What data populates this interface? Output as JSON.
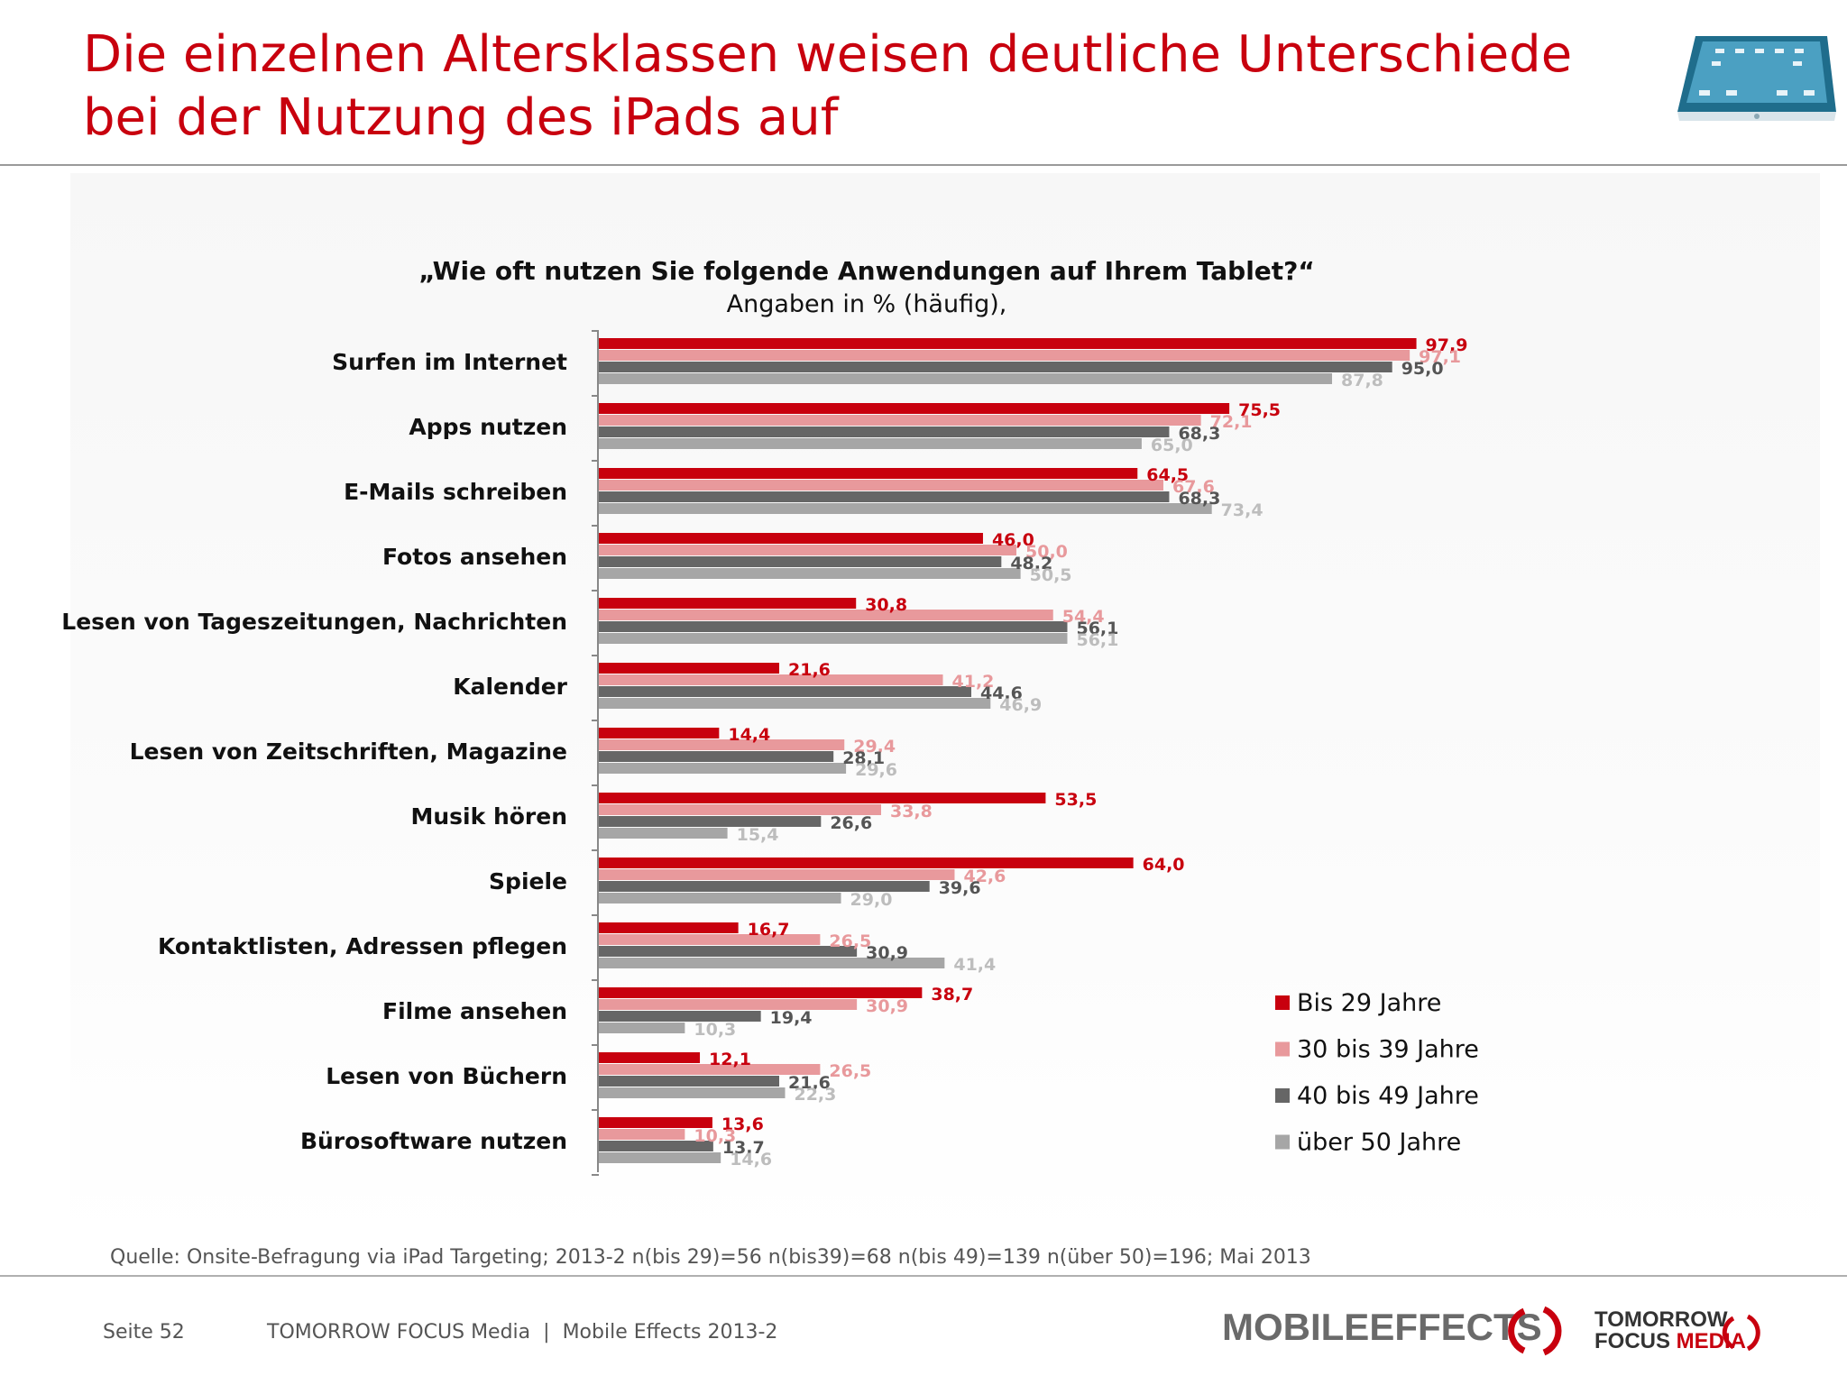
{
  "slide": {
    "title_line1": "Die einzelnen Altersklassen weisen deutliche Unterschiede",
    "title_line2": "bei der Nutzung des iPads auf",
    "source": "Quelle: Onsite-Befragung via iPad Targeting; 2013-2 n(bis 29)=56 n(bis39)=68 n(bis 49)=139 n(über 50)=196; Mai 2013",
    "page": "Seite 52",
    "company": "TOMORROW FOCUS Media",
    "separator": "|",
    "report": "Mobile Effects 2013-2",
    "logo_mobile": "MOBILE",
    "logo_effects": "EFFECTS",
    "logo_tf_line1": "TOMORROW",
    "logo_tf_focus": "FOCUS",
    "logo_tf_media": "MEDIA"
  },
  "colors": {
    "title": "#c8000e",
    "series": [
      "#c8000e",
      "#e8999c",
      "#666666",
      "#a6a6a6"
    ],
    "label": [
      "#c8000e",
      "#e8999c",
      "#555555",
      "#bdbdbd"
    ]
  },
  "chart_data": {
    "type": "bar",
    "orientation": "horizontal",
    "title": "„Wie oft nutzen Sie folgende Anwendungen auf Ihrem Tablet?“",
    "subtitle": "Angaben in % (häufig),",
    "categories": [
      "Surfen im Internet",
      "Apps nutzen",
      "E-Mails schreiben",
      "Fotos ansehen",
      "Lesen von Tageszeitungen, Nachrichten",
      "Kalender",
      "Lesen von Zeitschriften, Magazine",
      "Musik hören",
      "Spiele",
      "Kontaktlisten, Adressen pflegen",
      "Filme ansehen",
      "Lesen von Büchern",
      "Bürosoftware nutzen"
    ],
    "series": [
      {
        "name": "Bis 29 Jahre",
        "values": [
          97.9,
          75.5,
          64.5,
          46.0,
          30.8,
          21.6,
          14.4,
          53.5,
          64.0,
          16.7,
          38.7,
          12.1,
          13.6
        ],
        "labels": [
          "97,9",
          "75,5",
          "64,5",
          "46,0",
          "30,8",
          "21,6",
          "14,4",
          "53,5",
          "64,0",
          "16,7",
          "38,7",
          "12,1",
          "13,6"
        ]
      },
      {
        "name": "30 bis 39 Jahre",
        "values": [
          97.1,
          72.1,
          67.6,
          50.0,
          54.4,
          41.2,
          29.4,
          33.8,
          42.6,
          26.5,
          30.9,
          26.5,
          10.3
        ],
        "labels": [
          "97,1",
          "72,1",
          "67,6",
          "50,0",
          "54,4",
          "41,2",
          "29,4",
          "33,8",
          "42,6",
          "26,5",
          "30,9",
          "26,5",
          "10,3"
        ]
      },
      {
        "name": "40 bis 49 Jahre",
        "values": [
          95.0,
          68.3,
          68.3,
          48.2,
          56.1,
          44.6,
          28.1,
          26.6,
          39.6,
          30.9,
          19.4,
          21.6,
          13.7
        ],
        "labels": [
          "95,0",
          "68,3",
          "68,3",
          "48,2",
          "56,1",
          "44,6",
          "28,1",
          "26,6",
          "39,6",
          "30,9",
          "19,4",
          "21,6",
          "13,7"
        ]
      },
      {
        "name": "über 50 Jahre",
        "values": [
          87.8,
          65.0,
          73.4,
          50.5,
          56.1,
          46.9,
          29.6,
          15.4,
          29.0,
          41.4,
          10.3,
          22.3,
          14.6
        ],
        "labels": [
          "87,8",
          "65,0",
          "73,4",
          "50,5",
          "56,1",
          "46,9",
          "29,6",
          "15,4",
          "29,0",
          "41,4",
          "10,3",
          "22,3",
          "14,6"
        ]
      }
    ],
    "xlim": [
      0,
      100
    ],
    "grid": false,
    "legend_position": "bottom-right"
  }
}
